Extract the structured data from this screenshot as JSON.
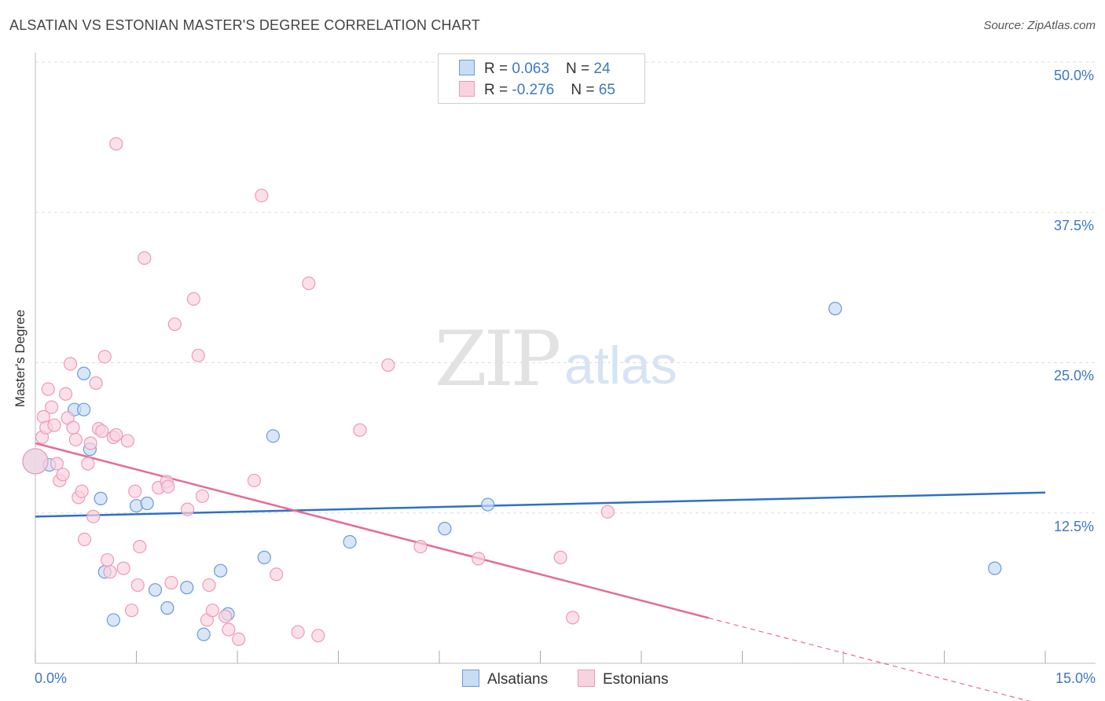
{
  "title": "ALSATIAN VS ESTONIAN MASTER'S DEGREE CORRELATION CHART",
  "source": "Source: ZipAtlas.com",
  "watermark": {
    "zip": "ZIP",
    "atlas": "atlas"
  },
  "colors": {
    "blue": "#3b78c4",
    "blue_fill": "#c8dcf4",
    "blue_stroke": "#6a9bd8",
    "blue_line": "#2f6fcb",
    "pink": "#e87ea0",
    "pink_fill": "#f8d3df",
    "pink_stroke": "#ee9ab6",
    "pink_line": "#e56b95",
    "grid": "#dddddd"
  },
  "legend": {
    "rows": [
      {
        "r_label": "R = ",
        "r_value": "0.063",
        "n_label": "N = ",
        "n_value": "24"
      },
      {
        "r_label": "R = ",
        "r_value": "-0.276",
        "n_label": "N = ",
        "n_value": "65"
      }
    ]
  },
  "bottom_legend": [
    {
      "label": "Alsatians"
    },
    {
      "label": "Estonians"
    }
  ],
  "chart_data": {
    "type": "scatter",
    "title": "ALSATIAN VS ESTONIAN MASTER'S DEGREE CORRELATION CHART",
    "xlabel": "",
    "ylabel": "Master's Degree",
    "xlim": [
      0,
      15
    ],
    "ylim": [
      0,
      50
    ],
    "x_tick_labels": [
      "0.0%",
      "15.0%"
    ],
    "y_ticks": [
      12.5,
      25.0,
      37.5,
      50.0
    ],
    "y_tick_labels": [
      "12.5%",
      "25.0%",
      "37.5%",
      "50.0%"
    ],
    "grid": true,
    "series": [
      {
        "name": "Alsatians",
        "r": 0.063,
        "n": 24,
        "trend": {
          "x0": 0.0,
          "y0": 12.2,
          "x1": 15.0,
          "y1": 14.2,
          "solid_until": 15.0
        },
        "points": [
          [
            0.0,
            16.8,
            1.0
          ],
          [
            0.21,
            16.5,
            0.5
          ],
          [
            0.58,
            21.1,
            0.5
          ],
          [
            0.72,
            21.1,
            0.5
          ],
          [
            0.72,
            24.1,
            0.5
          ],
          [
            0.81,
            17.8,
            0.5
          ],
          [
            0.97,
            13.7,
            0.5
          ],
          [
            1.03,
            7.6,
            0.5
          ],
          [
            1.16,
            3.6,
            0.5
          ],
          [
            1.5,
            13.1,
            0.5
          ],
          [
            1.66,
            13.3,
            0.5
          ],
          [
            1.78,
            6.1,
            0.5
          ],
          [
            1.96,
            4.6,
            0.5
          ],
          [
            2.25,
            6.3,
            0.5
          ],
          [
            2.5,
            2.4,
            0.5
          ],
          [
            2.75,
            7.7,
            0.5
          ],
          [
            2.86,
            4.1,
            0.5
          ],
          [
            3.4,
            8.8,
            0.5
          ],
          [
            3.53,
            18.9,
            0.5
          ],
          [
            4.67,
            10.1,
            0.5
          ],
          [
            6.08,
            11.2,
            0.5
          ],
          [
            6.72,
            13.2,
            0.5
          ],
          [
            11.88,
            29.5,
            0.5
          ],
          [
            14.25,
            7.9,
            0.5
          ]
        ]
      },
      {
        "name": "Estonians",
        "r": -0.276,
        "n": 65,
        "trend": {
          "x0": 0.0,
          "y0": 18.3,
          "x1": 15.0,
          "y1": -3.5,
          "solid_until": 10.0
        },
        "points": [
          [
            0.0,
            16.8,
            1.0
          ],
          [
            0.1,
            18.8,
            0.5
          ],
          [
            0.12,
            20.5,
            0.5
          ],
          [
            0.16,
            19.6,
            0.5
          ],
          [
            0.19,
            22.8,
            0.5
          ],
          [
            0.24,
            21.3,
            0.5
          ],
          [
            0.28,
            19.8,
            0.5
          ],
          [
            0.32,
            16.6,
            0.5
          ],
          [
            0.36,
            15.2,
            0.5
          ],
          [
            0.41,
            15.7,
            0.5
          ],
          [
            0.45,
            22.4,
            0.5
          ],
          [
            0.48,
            20.4,
            0.5
          ],
          [
            0.52,
            24.9,
            0.5
          ],
          [
            0.56,
            19.6,
            0.5
          ],
          [
            0.6,
            18.6,
            0.5
          ],
          [
            0.64,
            13.8,
            0.5
          ],
          [
            0.69,
            14.3,
            0.5
          ],
          [
            0.73,
            10.3,
            0.5
          ],
          [
            0.78,
            16.6,
            0.5
          ],
          [
            0.82,
            18.3,
            0.5
          ],
          [
            0.86,
            12.2,
            0.5
          ],
          [
            0.9,
            23.3,
            0.5
          ],
          [
            0.94,
            19.5,
            0.5
          ],
          [
            0.99,
            19.3,
            0.5
          ],
          [
            1.03,
            25.5,
            0.5
          ],
          [
            1.07,
            8.6,
            0.5
          ],
          [
            1.11,
            7.6,
            0.5
          ],
          [
            1.16,
            18.8,
            0.5
          ],
          [
            1.2,
            19.0,
            0.5
          ],
          [
            1.2,
            43.2,
            0.5
          ],
          [
            1.31,
            7.9,
            0.5
          ],
          [
            1.37,
            18.5,
            0.5
          ],
          [
            1.43,
            4.4,
            0.5
          ],
          [
            1.48,
            14.3,
            0.5
          ],
          [
            1.52,
            6.5,
            0.5
          ],
          [
            1.55,
            9.7,
            0.5
          ],
          [
            1.62,
            33.7,
            0.5
          ],
          [
            1.83,
            14.6,
            0.5
          ],
          [
            1.95,
            15.1,
            0.5
          ],
          [
            1.97,
            14.7,
            0.5
          ],
          [
            2.02,
            6.7,
            0.5
          ],
          [
            2.07,
            28.2,
            0.5
          ],
          [
            2.26,
            12.8,
            0.5
          ],
          [
            2.35,
            30.3,
            0.5
          ],
          [
            2.42,
            25.6,
            0.5
          ],
          [
            2.48,
            13.9,
            0.5
          ],
          [
            2.55,
            3.6,
            0.5
          ],
          [
            2.58,
            6.5,
            0.5
          ],
          [
            2.63,
            4.4,
            0.5
          ],
          [
            2.82,
            3.9,
            0.5
          ],
          [
            2.87,
            2.8,
            0.5
          ],
          [
            3.02,
            2.0,
            0.5
          ],
          [
            3.25,
            15.2,
            0.5
          ],
          [
            3.36,
            38.9,
            0.5
          ],
          [
            3.58,
            7.4,
            0.5
          ],
          [
            3.9,
            2.6,
            0.5
          ],
          [
            4.06,
            31.6,
            0.5
          ],
          [
            4.2,
            2.3,
            0.5
          ],
          [
            4.82,
            19.4,
            0.5
          ],
          [
            5.24,
            24.8,
            0.5
          ],
          [
            5.72,
            9.7,
            0.5
          ],
          [
            6.58,
            8.7,
            0.5
          ],
          [
            7.8,
            8.8,
            0.5
          ],
          [
            7.98,
            3.8,
            0.5
          ],
          [
            8.5,
            12.6,
            0.5
          ]
        ]
      }
    ]
  }
}
